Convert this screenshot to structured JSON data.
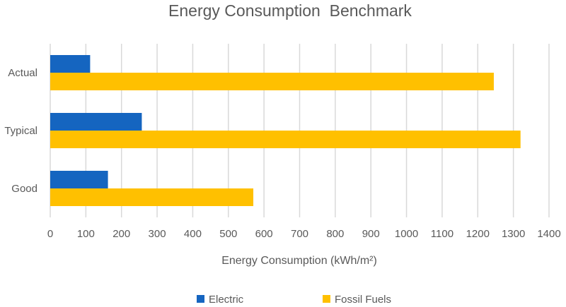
{
  "chart_data": {
    "type": "bar",
    "orientation": "horizontal",
    "title": "Energy Consumption  Benchmark",
    "xlabel": "Energy Consumption (kWh/m²)",
    "ylabel": "",
    "categories": [
      "Actual",
      "Typical",
      "Good"
    ],
    "series": [
      {
        "name": "Electric",
        "values": [
          112,
          257,
          162
        ],
        "color": "#1565C0"
      },
      {
        "name": "Fossil Fuels",
        "values": [
          1245,
          1320,
          570
        ],
        "color": "#FFC000"
      }
    ],
    "xlim": [
      0,
      1400
    ],
    "xticks": [
      "0",
      "100",
      "200",
      "300",
      "400",
      "500",
      "600",
      "700",
      "800",
      "900",
      "1000",
      "1100",
      "1200",
      "1300",
      "1400"
    ],
    "grid": "vertical",
    "legend": "bottom"
  }
}
